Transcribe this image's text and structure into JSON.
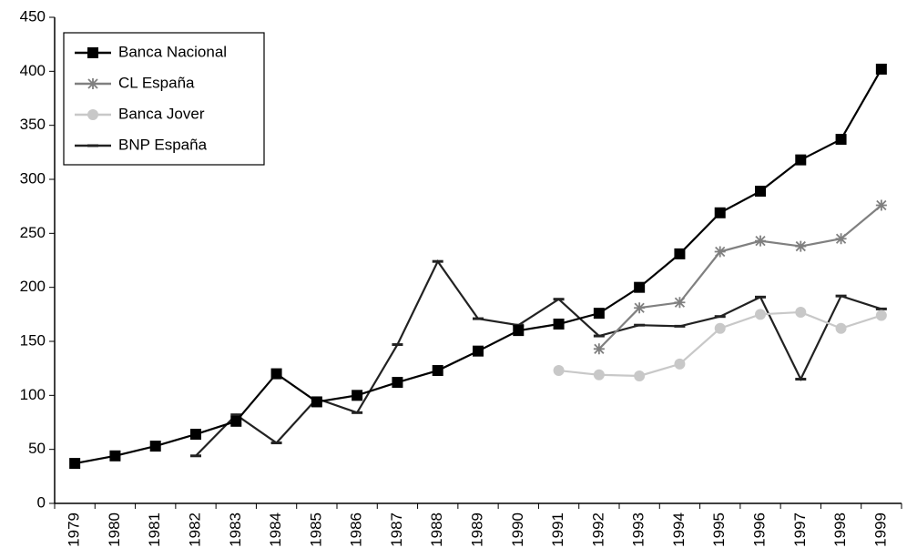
{
  "chart_data": {
    "type": "line",
    "categories": [
      "1979",
      "1980",
      "1981",
      "1982",
      "1983",
      "1984",
      "1985",
      "1986",
      "1987",
      "1988",
      "1989",
      "1990",
      "1991",
      "1992",
      "1993",
      "1994",
      "1995",
      "1996",
      "1997",
      "1998",
      "1999"
    ],
    "series": [
      {
        "name": "Banca Nacional",
        "color": "#000000",
        "marker": "square",
        "values": [
          37,
          44,
          53,
          64,
          76,
          120,
          94,
          100,
          112,
          123,
          141,
          160,
          166,
          176,
          200,
          231,
          269,
          289,
          318,
          337,
          402
        ]
      },
      {
        "name": "CL España",
        "color": "#808080",
        "marker": "asterisk",
        "values": [
          null,
          null,
          null,
          null,
          null,
          null,
          null,
          null,
          null,
          null,
          null,
          null,
          null,
          143,
          181,
          186,
          233,
          243,
          238,
          245,
          276
        ]
      },
      {
        "name": "Banca Jover",
        "color": "#c8c8c8",
        "marker": "circle",
        "values": [
          null,
          null,
          null,
          null,
          null,
          null,
          null,
          null,
          null,
          null,
          null,
          null,
          123,
          119,
          118,
          129,
          162,
          175,
          177,
          162,
          174
        ]
      },
      {
        "name": "BNP España",
        "color": "#222222",
        "marker": "dash",
        "values": [
          null,
          null,
          null,
          44,
          82,
          56,
          97,
          84,
          147,
          224,
          171,
          165,
          189,
          155,
          165,
          164,
          173,
          191,
          115,
          192,
          180
        ]
      }
    ],
    "ylim": [
      0,
      450
    ],
    "yticks": [
      0,
      50,
      100,
      150,
      200,
      250,
      300,
      350,
      400,
      450
    ],
    "grid": false,
    "legend": "top-left"
  }
}
